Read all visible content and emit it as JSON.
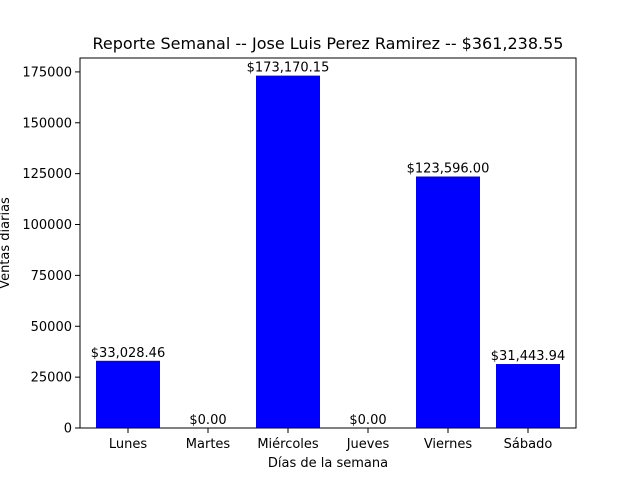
{
  "chart_data": {
    "type": "bar",
    "title": "Reporte Semanal -- Jose Luis Perez Ramirez -- $361,238.55",
    "xlabel": "Días de la semana",
    "ylabel": "Ventas diarias",
    "categories": [
      "Lunes",
      "Martes",
      "Miércoles",
      "Jueves",
      "Viernes",
      "Sábado"
    ],
    "values": [
      33028.46,
      0,
      173170.15,
      0,
      123596.0,
      31443.94
    ],
    "data_labels": [
      "$33,028.46",
      "$0.00",
      "$173,170.15",
      "$0.00",
      "$123,596.00",
      "$31,443.94"
    ],
    "ylim": [
      0,
      181828.66
    ],
    "yticks": [
      0,
      25000,
      50000,
      75000,
      100000,
      125000,
      150000,
      175000
    ],
    "ytick_labels": [
      "0",
      "25000",
      "50000",
      "75000",
      "100000",
      "125000",
      "150000",
      "175000"
    ],
    "bar_color": "#0000ff",
    "grid": false,
    "legend": "none"
  }
}
